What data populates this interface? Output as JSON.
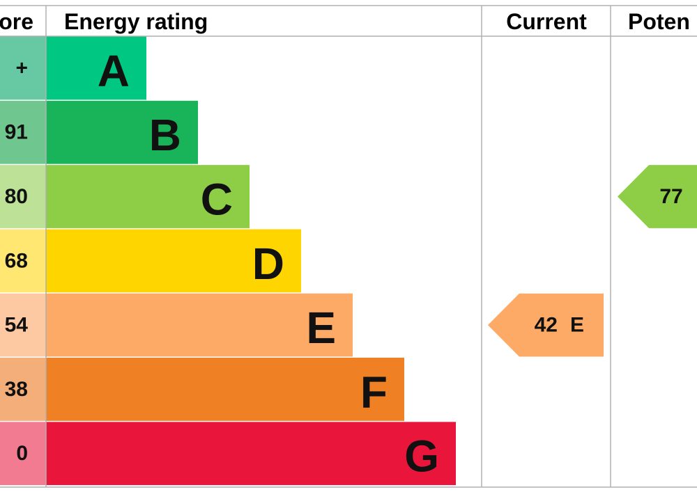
{
  "header": {
    "score": "ore",
    "rating": "Energy rating",
    "current": "Current",
    "potential": "Poten"
  },
  "bands": [
    {
      "letter": "A",
      "range": "+",
      "color": "#00c781",
      "score_color": "#66c9a3"
    },
    {
      "letter": "B",
      "range": "91",
      "color": "#19b459",
      "score_color": "#6fc78f"
    },
    {
      "letter": "C",
      "range": "80",
      "color": "#8dce46",
      "score_color": "#bde297"
    },
    {
      "letter": "D",
      "range": "68",
      "color": "#ffd500",
      "score_color": "#ffe772"
    },
    {
      "letter": "E",
      "range": "54",
      "color": "#fcaa65",
      "score_color": "#fdc9a2"
    },
    {
      "letter": "F",
      "range": "38",
      "color": "#ef8023",
      "score_color": "#f4ae79"
    },
    {
      "letter": "G",
      "range": "0",
      "color": "#e9153b",
      "score_color": "#f27b91"
    }
  ],
  "current": {
    "value": 42,
    "letter": "E",
    "color": "#fcaa65"
  },
  "potential": {
    "value": 77,
    "color": "#8dce46"
  }
}
